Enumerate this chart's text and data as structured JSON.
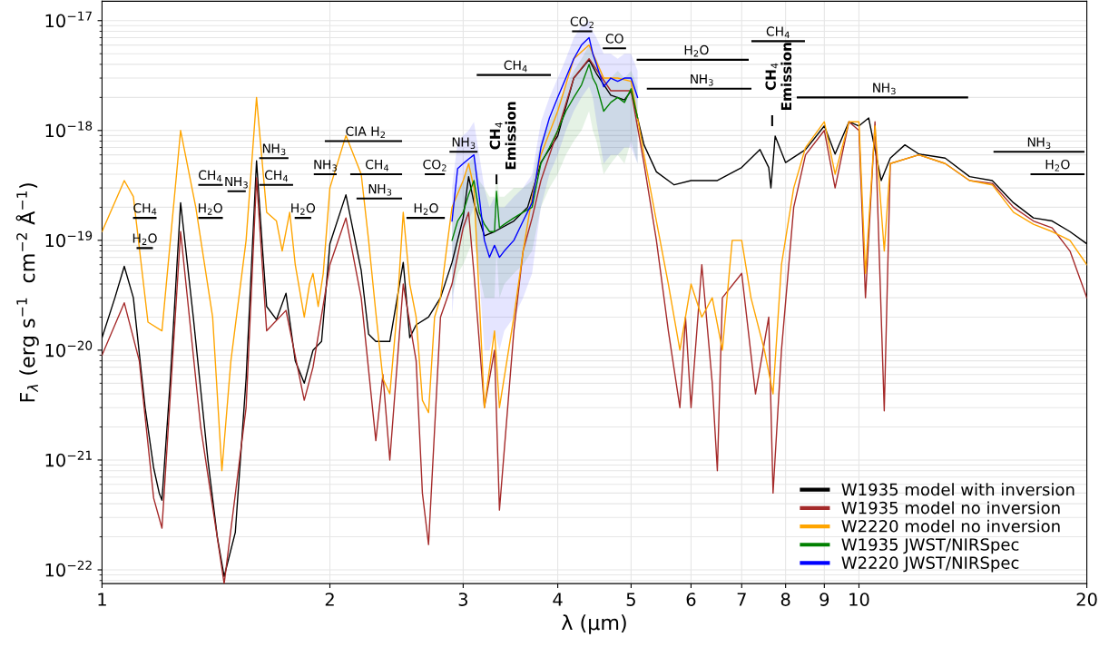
{
  "chart_data": {
    "type": "line",
    "xlabel": "λ (μm)",
    "ylabel": "F$_{λ}$ (erg s$^{−1}$  cm$^{−2}$ Å$^{−1}$)",
    "log": "xy",
    "grid": true,
    "legend": "bottom right",
    "xlim": [
      1,
      20
    ],
    "ylim": [
      7.5e-23,
      1.5e-17
    ],
    "xticks": [
      1,
      2,
      3,
      4,
      5,
      6,
      7,
      8,
      9,
      10,
      20
    ],
    "yticks": [
      {
        "value": 1e-22,
        "label": "10$^{−22}$"
      },
      {
        "value": 1e-21,
        "label": "10$^{−21}$"
      },
      {
        "value": 1e-20,
        "label": "10$^{−20}$"
      },
      {
        "value": 1e-19,
        "label": "10$^{−19}$"
      },
      {
        "value": 1e-18,
        "label": "10$^{−18}$"
      },
      {
        "value": 1e-17,
        "label": "10$^{−17}$"
      }
    ],
    "series": [
      {
        "name": "W1935 model with inversion",
        "color": "#000000",
        "x": [
          1.0,
          1.04,
          1.07,
          1.1,
          1.14,
          1.17,
          1.19,
          1.2,
          1.23,
          1.27,
          1.32,
          1.38,
          1.42,
          1.45,
          1.5,
          1.55,
          1.6,
          1.63,
          1.65,
          1.7,
          1.75,
          1.8,
          1.85,
          1.9,
          1.95,
          2.0,
          2.1,
          2.2,
          2.25,
          2.3,
          2.4,
          2.5,
          2.55,
          2.6,
          2.7,
          2.8,
          2.9,
          3.0,
          3.05,
          3.1,
          3.2,
          3.3,
          3.5,
          3.65,
          3.8,
          4.0,
          4.2,
          4.4,
          4.5,
          4.7,
          4.9,
          5.0,
          5.2,
          5.4,
          5.7,
          6.0,
          6.5,
          7.0,
          7.4,
          7.6,
          7.65,
          7.75,
          8.0,
          8.5,
          9.0,
          9.3,
          9.7,
          10.0,
          10.3,
          10.7,
          11.0,
          11.5,
          12.0,
          13.0,
          14.0,
          15.0,
          16.0,
          17.0,
          18.0,
          19.0,
          20.0
        ],
        "values": [
          1.3e-20,
          3e-20,
          5.8e-20,
          3e-20,
          3e-21,
          8.5e-22,
          5e-22,
          4.3e-22,
          5e-21,
          2.2e-19,
          2e-20,
          1e-21,
          2e-22,
          8.7e-23,
          2.2e-22,
          5.5e-21,
          5.3e-19,
          8e-20,
          2.5e-20,
          1.9e-20,
          3.3e-20,
          8e-21,
          5e-21,
          1e-20,
          1.2e-20,
          9.3e-20,
          2.6e-19,
          5.3e-20,
          1.4e-20,
          1.2e-20,
          1.2e-20,
          6.3e-20,
          1.3e-20,
          1.7e-20,
          2e-20,
          3e-20,
          6.3e-20,
          1.6e-19,
          3.8e-19,
          2.2e-19,
          1.1e-19,
          1.2e-19,
          1.5e-19,
          2e-19,
          5.1e-19,
          8.9e-19,
          3e-18,
          4.4e-18,
          3.3e-18,
          2.1e-18,
          1.9e-18,
          2.3e-18,
          7.4e-19,
          4.2e-19,
          3.2e-19,
          3.5e-19,
          3.5e-19,
          4.6e-19,
          6.7e-19,
          4.6e-19,
          3e-19,
          8.9e-19,
          5.1e-19,
          6.7e-19,
          1.1e-18,
          6.1e-19,
          1.2e-18,
          1.1e-18,
          1.3e-18,
          3.5e-19,
          5.6e-19,
          7.4e-19,
          6.1e-19,
          5.6e-19,
          3.8e-19,
          3.5e-19,
          2.2e-19,
          1.6e-19,
          1.5e-19,
          1.2e-19,
          9.3e-20
        ]
      },
      {
        "name": "W1935 model no inversion",
        "color": "#a52a2a",
        "x": [
          1.0,
          1.07,
          1.12,
          1.17,
          1.2,
          1.27,
          1.35,
          1.45,
          1.55,
          1.6,
          1.65,
          1.75,
          1.85,
          1.9,
          2.0,
          2.1,
          2.2,
          2.3,
          2.35,
          2.4,
          2.5,
          2.6,
          2.65,
          2.7,
          2.8,
          2.9,
          3.0,
          3.05,
          3.1,
          3.2,
          3.3,
          3.35,
          3.5,
          3.6,
          3.7,
          3.8,
          4.0,
          4.2,
          4.4,
          4.7,
          5.0,
          5.2,
          5.4,
          5.6,
          5.8,
          5.9,
          6.0,
          6.2,
          6.4,
          6.5,
          6.6,
          7.0,
          7.3,
          7.6,
          7.7,
          7.9,
          8.2,
          8.5,
          9.0,
          9.3,
          9.7,
          10.0,
          10.2,
          10.5,
          10.8,
          11.0,
          12.0,
          13.0,
          14.0,
          15.0,
          16.0,
          17.0,
          18.0,
          19.0,
          20.0
        ],
        "values": [
          9e-21,
          2.7e-20,
          8e-21,
          4.5e-22,
          2.4e-22,
          1.2e-19,
          2e-21,
          7.5e-23,
          3e-21,
          3.7e-19,
          1.5e-20,
          2.3e-20,
          3.5e-21,
          7e-21,
          6e-20,
          1.6e-19,
          3e-20,
          1.5e-21,
          6e-21,
          1e-21,
          4e-20,
          8e-21,
          5e-22,
          1.7e-22,
          2e-20,
          4e-20,
          1.3e-19,
          1.8e-19,
          5e-20,
          3e-21,
          1e-20,
          3.5e-22,
          1.5e-20,
          8e-20,
          1.6e-19,
          3.5e-19,
          1e-18,
          3e-18,
          4.5e-18,
          2.3e-18,
          2.3e-18,
          5e-19,
          1e-19,
          1.5e-20,
          3e-21,
          2e-20,
          3e-21,
          6e-20,
          5e-21,
          8e-22,
          3e-20,
          5e-20,
          4e-21,
          2e-20,
          5e-22,
          1e-20,
          2e-19,
          6e-19,
          1e-18,
          3e-19,
          1.2e-18,
          1e-18,
          3e-20,
          1.2e-18,
          2.8e-21,
          5e-19,
          6e-19,
          5e-19,
          3.5e-19,
          3.3e-19,
          2e-19,
          1.5e-19,
          1.3e-19,
          8e-20,
          3e-20
        ]
      },
      {
        "name": "W2220 model no inversion",
        "color": "#ffa500",
        "x": [
          1.0,
          1.07,
          1.1,
          1.15,
          1.2,
          1.27,
          1.33,
          1.4,
          1.44,
          1.48,
          1.55,
          1.6,
          1.65,
          1.7,
          1.73,
          1.77,
          1.8,
          1.85,
          1.88,
          1.9,
          1.93,
          1.96,
          2.0,
          2.1,
          2.2,
          2.25,
          2.3,
          2.35,
          2.4,
          2.45,
          2.5,
          2.55,
          2.6,
          2.65,
          2.7,
          2.75,
          2.8,
          2.85,
          2.9,
          3.0,
          3.05,
          3.1,
          3.15,
          3.2,
          3.3,
          3.35,
          3.5,
          3.6,
          3.7,
          3.8,
          4.0,
          4.2,
          4.4,
          4.6,
          4.8,
          5.0,
          5.2,
          5.4,
          5.6,
          5.8,
          6.0,
          6.2,
          6.4,
          6.6,
          6.8,
          7.0,
          7.2,
          7.5,
          7.7,
          7.9,
          8.2,
          8.5,
          9.0,
          9.3,
          9.7,
          10.0,
          10.2,
          10.5,
          10.8,
          11.0,
          12.0,
          13.0,
          14.0,
          15.0,
          16.0,
          17.0,
          18.0,
          19.0,
          20.0
        ],
        "values": [
          1.2e-19,
          3.5e-19,
          2.5e-19,
          1.8e-20,
          1.5e-20,
          1e-18,
          2e-19,
          2e-20,
          8e-22,
          8e-21,
          1e-19,
          2e-18,
          1.8e-19,
          1.5e-19,
          8e-20,
          1.8e-19,
          6e-20,
          2e-20,
          4e-20,
          5e-20,
          2.5e-20,
          5e-20,
          3e-19,
          9e-19,
          4e-19,
          1e-19,
          2.2e-20,
          5.5e-21,
          4e-21,
          2e-20,
          1.8e-19,
          4e-20,
          2e-20,
          3.5e-21,
          2.7e-21,
          2e-20,
          3e-20,
          8e-20,
          2e-19,
          3.5e-19,
          5e-19,
          3e-19,
          3e-20,
          3e-21,
          1.5e-20,
          3e-21,
          2e-20,
          8e-20,
          2.5e-19,
          6e-19,
          1.5e-18,
          4.5e-18,
          6e-18,
          3e-18,
          3e-18,
          2.8e-18,
          6e-19,
          1.5e-19,
          4e-20,
          1e-20,
          4e-20,
          2e-20,
          3e-20,
          1e-20,
          1e-19,
          1e-19,
          3e-20,
          1e-20,
          4e-21,
          6e-20,
          3e-19,
          7e-19,
          1.2e-18,
          4e-19,
          1.2e-18,
          1.2e-18,
          5e-20,
          1.1e-18,
          8e-20,
          5e-19,
          6e-19,
          5e-19,
          3.5e-19,
          3.2e-19,
          1.8e-19,
          1.4e-19,
          1.2e-19,
          1e-19,
          6e-20
        ]
      },
      {
        "name": "W1935 JWST/NIRSpec",
        "color": "#008000",
        "x": [
          2.9,
          2.95,
          3.0,
          3.05,
          3.1,
          3.15,
          3.2,
          3.25,
          3.3,
          3.32,
          3.35,
          3.4,
          3.5,
          3.6,
          3.7,
          3.8,
          3.9,
          4.0,
          4.1,
          4.2,
          4.3,
          4.4,
          4.45,
          4.5,
          4.6,
          4.7,
          4.8,
          4.9,
          5.0,
          5.1
        ],
        "values": [
          1e-19,
          1.5e-19,
          1.8e-19,
          2.6e-19,
          3.5e-19,
          1.8e-19,
          1.4e-19,
          1.2e-19,
          1.2e-19,
          2.8e-19,
          1.3e-19,
          1.4e-19,
          1.6e-19,
          1.8e-19,
          2e-19,
          5e-19,
          7e-19,
          1e-18,
          1.5e-18,
          2e-18,
          2.6e-18,
          4e-18,
          3e-18,
          2.6e-18,
          1.5e-18,
          1.8e-18,
          2e-18,
          1.8e-18,
          2.4e-18,
          1.3e-18
        ],
        "lower": [
          3e-20,
          5e-20,
          6e-20,
          8e-20,
          1e-19,
          5e-20,
          3e-20,
          3e-20,
          3e-20,
          8e-20,
          3e-20,
          4e-20,
          5e-20,
          6e-20,
          8e-20,
          2e-19,
          3e-19,
          4e-19,
          6e-19,
          8e-19,
          1e-18,
          1.5e-18,
          1e-18,
          8e-19,
          4e-19,
          5e-19,
          6e-19,
          5e-19,
          8e-19,
          5e-19
        ],
        "upper": [
          2e-19,
          3e-19,
          3.5e-19,
          5e-19,
          6e-19,
          3.5e-19,
          3e-19,
          2.5e-19,
          2.5e-19,
          4e-19,
          2.5e-19,
          2.5e-19,
          3e-19,
          3e-19,
          3.5e-19,
          8e-19,
          1.2e-18,
          1.8e-18,
          2.5e-18,
          3.5e-18,
          4.5e-18,
          6e-18,
          5e-18,
          4.5e-18,
          3e-18,
          3e-18,
          3.5e-18,
          3e-18,
          3.5e-18,
          2.5e-18
        ]
      },
      {
        "name": "W2220 JWST/NIRSpec",
        "color": "#0000ff",
        "x": [
          2.9,
          2.95,
          3.0,
          3.05,
          3.1,
          3.15,
          3.2,
          3.25,
          3.3,
          3.35,
          3.4,
          3.5,
          3.6,
          3.7,
          3.8,
          3.9,
          4.0,
          4.1,
          4.2,
          4.3,
          4.4,
          4.45,
          4.5,
          4.6,
          4.7,
          4.8,
          4.9,
          5.0,
          5.1
        ],
        "values": [
          1.5e-19,
          4.5e-19,
          5e-19,
          5.5e-19,
          6e-19,
          2.5e-19,
          1e-19,
          7e-20,
          9e-20,
          7e-20,
          8e-20,
          1e-19,
          1.5e-19,
          2.2e-19,
          7e-19,
          1.3e-18,
          2e-18,
          3e-18,
          4.5e-18,
          6e-18,
          7e-18,
          5e-18,
          4e-18,
          2.5e-18,
          3e-18,
          2.8e-18,
          3e-18,
          3e-18,
          2e-18
        ],
        "lower": [
          2e-20,
          1e-19,
          1.2e-19,
          1.5e-19,
          2e-19,
          5e-20,
          1e-20,
          1e-20,
          1.5e-20,
          1e-20,
          1.5e-20,
          2e-20,
          3e-20,
          5e-20,
          2e-19,
          4e-19,
          6e-19,
          1e-18,
          1.5e-18,
          2e-18,
          2.5e-18,
          2e-18,
          1.2e-18,
          5e-19,
          6e-19,
          6e-19,
          7e-19,
          7e-19,
          5e-19
        ],
        "upper": [
          3e-19,
          8e-19,
          9e-19,
          1e-18,
          1.2e-18,
          6e-19,
          3e-19,
          2e-19,
          2.5e-19,
          2e-19,
          2e-19,
          2.5e-19,
          3e-19,
          4e-19,
          1.2e-18,
          2e-18,
          3e-18,
          4.5e-18,
          7e-18,
          9e-18,
          1e-17,
          8e-18,
          7e-18,
          5e-18,
          5e-18,
          4.5e-18,
          5e-18,
          5e-18,
          3.5e-18
        ]
      },
      {
        "color": "#000000",
        "x": [
          1.102,
          1.177
        ],
        "values": [
          1.6e-19,
          1.6e-19
        ]
      },
      {
        "color": "#000000",
        "x": [
          1.114,
          1.164
        ],
        "values": [
          8.5e-20,
          8.5e-20
        ]
      },
      {
        "color": "#000000",
        "x": [
          1.344,
          1.44
        ],
        "values": [
          3.2e-19,
          3.2e-19
        ]
      },
      {
        "color": "#000000",
        "x": [
          1.344,
          1.44
        ],
        "values": [
          1.6e-19,
          1.6e-19
        ]
      },
      {
        "color": "#000000",
        "x": [
          1.469,
          1.544
        ],
        "values": [
          2.8e-19,
          2.8e-19
        ]
      },
      {
        "color": "#000000",
        "x": [
          1.618,
          1.758
        ],
        "values": [
          5.6e-19,
          5.6e-19
        ]
      },
      {
        "color": "#000000",
        "x": [
          1.618,
          1.783
        ],
        "values": [
          3.2e-19,
          3.2e-19
        ]
      },
      {
        "color": "#000000",
        "x": [
          1.802,
          1.884
        ],
        "values": [
          1.6e-19,
          1.6e-19
        ]
      },
      {
        "color": "#000000",
        "x": [
          1.91,
          2.036
        ],
        "values": [
          4e-19,
          4e-19
        ]
      },
      {
        "color": "#000000",
        "x": [
          1.975,
          2.484
        ],
        "values": [
          8e-19,
          8e-19
        ]
      },
      {
        "color": "#000000",
        "x": [
          2.134,
          2.484
        ],
        "values": [
          4e-19,
          4e-19
        ]
      },
      {
        "color": "#000000",
        "x": [
          2.175,
          2.484
        ],
        "values": [
          2.4e-19,
          2.4e-19
        ]
      },
      {
        "color": "#000000",
        "x": [
          2.677,
          2.829
        ],
        "values": [
          4e-19,
          4e-19
        ]
      },
      {
        "color": "#000000",
        "x": [
          2.532,
          2.829
        ],
        "values": [
          1.6e-19,
          1.6e-19
        ]
      },
      {
        "color": "#000000",
        "x": [
          2.886,
          3.125
        ],
        "values": [
          6.4e-19,
          6.4e-19
        ]
      },
      {
        "color": "#000000",
        "x": [
          3.135,
          3.906
        ],
        "values": [
          3.2e-18,
          3.2e-18
        ]
      },
      {
        "color": "#000000",
        "x": [
          4.19,
          4.43
        ],
        "values": [
          8e-18,
          8e-18
        ]
      },
      {
        "color": "#000000",
        "x": [
          4.6,
          4.91
        ],
        "values": [
          5.6e-18,
          5.6e-18
        ]
      },
      {
        "color": "#000000",
        "x": [
          5.1,
          7.13
        ],
        "values": [
          4.4e-18,
          4.4e-18
        ]
      },
      {
        "color": "#000000",
        "x": [
          5.26,
          7.19
        ],
        "values": [
          2.4e-18,
          2.4e-18
        ]
      },
      {
        "color": "#000000",
        "x": [
          7.23,
          8.46
        ],
        "values": [
          6.5e-18,
          6.5e-18
        ]
      },
      {
        "color": "#000000",
        "x": [
          8.3,
          13.9
        ],
        "values": [
          2e-18,
          2e-18
        ]
      },
      {
        "color": "#000000",
        "x": [
          15.1,
          19.8
        ],
        "values": [
          6.4e-19,
          6.4e-19
        ]
      },
      {
        "color": "#000000",
        "x": [
          16.9,
          19.8
        ],
        "values": [
          4e-19,
          4e-19
        ]
      },
      {
        "color": "#000000",
        "x": [
          3.32,
          3.32
        ],
        "values": [
          3.3e-19,
          3.9e-19
        ]
      },
      {
        "color": "#000000",
        "x": [
          7.68,
          7.68
        ],
        "values": [
          1.12e-18,
          1.35e-18
        ]
      }
    ],
    "annotations": [
      {
        "text": "CH$_{4}$",
        "x": 1.14,
        "y": 1.6e-19
      },
      {
        "text": "H$_{2}$O",
        "x": 1.139,
        "y": 8.5e-20
      },
      {
        "text": "CH$_{4}$",
        "x": 1.39,
        "y": 3.2e-19
      },
      {
        "text": "H$_{2}$O",
        "x": 1.39,
        "y": 1.6e-19
      },
      {
        "text": "NH$_{3}$",
        "x": 1.505,
        "y": 2.8e-19
      },
      {
        "text": "NH$_{3}$",
        "x": 1.688,
        "y": 5.6e-19
      },
      {
        "text": "CH$_{4}$",
        "x": 1.7,
        "y": 3.2e-19
      },
      {
        "text": "H$_{2}$O",
        "x": 1.843,
        "y": 1.6e-19
      },
      {
        "text": "NH$_{3}$",
        "x": 1.973,
        "y": 4e-19
      },
      {
        "text": "CIA H$_{2}$",
        "x": 2.23,
        "y": 8e-19
      },
      {
        "text": "CH$_{4}$",
        "x": 2.31,
        "y": 4e-19
      },
      {
        "text": "NH$_{3}$",
        "x": 2.33,
        "y": 2.4e-19
      },
      {
        "text": "CO$_{2}$",
        "x": 2.753,
        "y": 4e-19
      },
      {
        "text": "H$_{2}$O",
        "x": 2.68,
        "y": 1.6e-19
      },
      {
        "text": "NH$_{3}$",
        "x": 3.005,
        "y": 6.4e-19
      },
      {
        "text": "CH$_{4}$",
        "x": 3.52,
        "y": 3.2e-18
      },
      {
        "text": "CO$_{2}$",
        "x": 4.31,
        "y": 8e-18
      },
      {
        "text": "CO",
        "x": 4.755,
        "y": 5.6e-18
      },
      {
        "text": "H$_{2}$O",
        "x": 6.1,
        "y": 4.4e-18
      },
      {
        "text": "NH$_{3}$",
        "x": 6.2,
        "y": 2.4e-18
      },
      {
        "text": "CH$_{4}$",
        "x": 7.82,
        "y": 6.5e-18
      },
      {
        "text": "NH$_{3}$",
        "x": 10.8,
        "y": 2e-18
      },
      {
        "text": "NH$_{3}$",
        "x": 17.3,
        "y": 6.4e-19
      },
      {
        "text": "H$_{2}$O",
        "x": 18.3,
        "y": 4e-19
      },
      {
        "text": "CH$_{4}$\nEmission",
        "x": 3.32,
        "y": 3.9e-19
      },
      {
        "text": "CH$_{4}$\nEmission",
        "x": 7.68,
        "y": 1.35e-18
      }
    ]
  }
}
